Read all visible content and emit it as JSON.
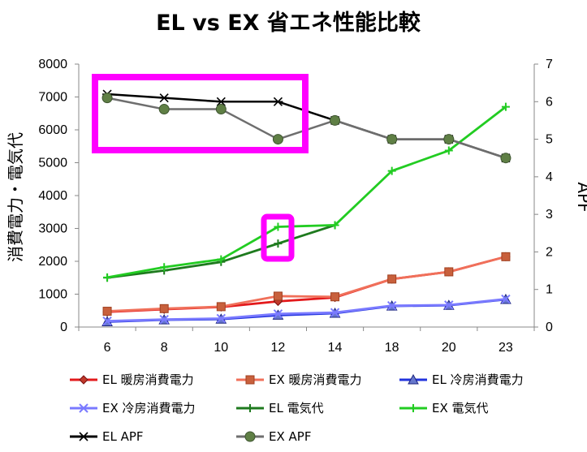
{
  "chart_data": {
    "type": "line",
    "title": "EL vs EX 省エネ性能比較",
    "ylabel": "消費電力・電気代",
    "y2label": "APF",
    "categories": [
      "6",
      "8",
      "10",
      "12",
      "14",
      "18",
      "20",
      "23"
    ],
    "ylim": [
      0,
      8000
    ],
    "y2lim": [
      0,
      7
    ],
    "yticks": [
      "0",
      "1000",
      "2000",
      "3000",
      "4000",
      "5000",
      "6000",
      "7000",
      "8000"
    ],
    "y2ticks": [
      "0",
      "1",
      "2",
      "3",
      "4",
      "5",
      "6",
      "7"
    ],
    "grid": false,
    "legend_position": "bottom",
    "series": [
      {
        "name": "EL 暖房消費電力",
        "axis": "left",
        "color": "#e31a1c",
        "marker": "diamond",
        "marker_fill": "#c0392b",
        "values": [
          460,
          540,
          610,
          780,
          900,
          1460,
          1680,
          2140
        ]
      },
      {
        "name": "EX 暖房消費電力",
        "axis": "left",
        "color": "#f0705a",
        "marker": "square",
        "marker_fill": "#c8603c",
        "values": [
          480,
          560,
          620,
          940,
          920,
          1460,
          1680,
          2140
        ]
      },
      {
        "name": "EL 冷房消費電力",
        "axis": "left",
        "color": "#2233dd",
        "marker": "triangle",
        "marker_fill": "#6677cc",
        "values": [
          160,
          220,
          240,
          360,
          420,
          640,
          660,
          840
        ]
      },
      {
        "name": "EX 冷房消費電力",
        "axis": "left",
        "color": "#7a7aff",
        "marker": "x",
        "marker_fill": "#7a7aff",
        "values": [
          180,
          230,
          260,
          400,
          440,
          650,
          670,
          850
        ]
      },
      {
        "name": "EL 電気代",
        "axis": "left",
        "color": "#1e7a1e",
        "marker": "plus",
        "marker_fill": "#1e7a1e",
        "values": [
          1500,
          1720,
          1980,
          2540,
          3100,
          null,
          null,
          null
        ]
      },
      {
        "name": "EX 電気代",
        "axis": "left",
        "color": "#22cc22",
        "marker": "plus",
        "marker_fill": "#22cc22",
        "values": [
          1510,
          1820,
          2060,
          3050,
          3100,
          4750,
          5370,
          6700
        ]
      },
      {
        "name": "EL APF",
        "axis": "right",
        "color": "#000000",
        "marker": "star",
        "marker_fill": "#000000",
        "values": [
          6.2,
          6.1,
          6.0,
          6.0,
          5.5,
          5.0,
          5.0,
          4.5
        ]
      },
      {
        "name": "EX APF",
        "axis": "right",
        "color": "#6e6e6e",
        "marker": "circle",
        "marker_fill": "#5f7f45",
        "values": [
          6.1,
          5.8,
          5.8,
          5.0,
          5.5,
          5.0,
          5.0,
          4.5
        ]
      }
    ],
    "highlight_color": "#ff00ff"
  }
}
